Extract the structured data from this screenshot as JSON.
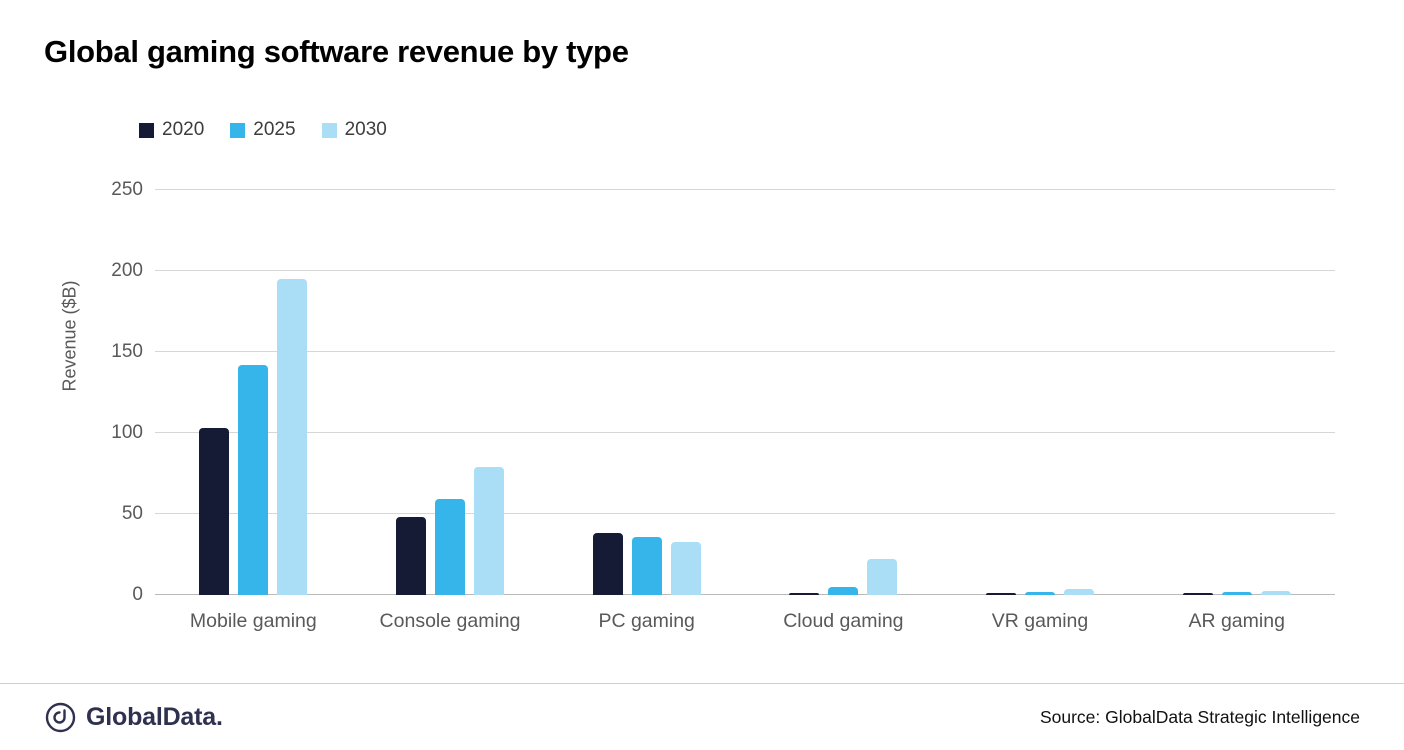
{
  "chart_data": {
    "type": "bar",
    "title": "Global gaming software revenue by type",
    "xlabel": "",
    "ylabel": "Revenue ($B)",
    "ylim": [
      0,
      250
    ],
    "yticks": [
      0,
      50,
      100,
      150,
      200,
      250
    ],
    "grid": true,
    "legend_position": "top-left",
    "categories": [
      "Mobile gaming",
      "Console gaming",
      "PC gaming",
      "Cloud gaming",
      "VR gaming",
      "AR gaming"
    ],
    "series": [
      {
        "name": "2020",
        "color": "#151b34",
        "values": [
          103,
          48,
          38,
          1,
          1,
          1.5
        ]
      },
      {
        "name": "2025",
        "color": "#36b5ea",
        "values": [
          142,
          59,
          36,
          5,
          2,
          2
        ]
      },
      {
        "name": "2030",
        "color": "#a9def6",
        "values": [
          195,
          79,
          33,
          22,
          4,
          2.5
        ]
      }
    ]
  },
  "footer": {
    "brand": "GlobalData.",
    "source": "Source: GlobalData Strategic Intelligence"
  }
}
